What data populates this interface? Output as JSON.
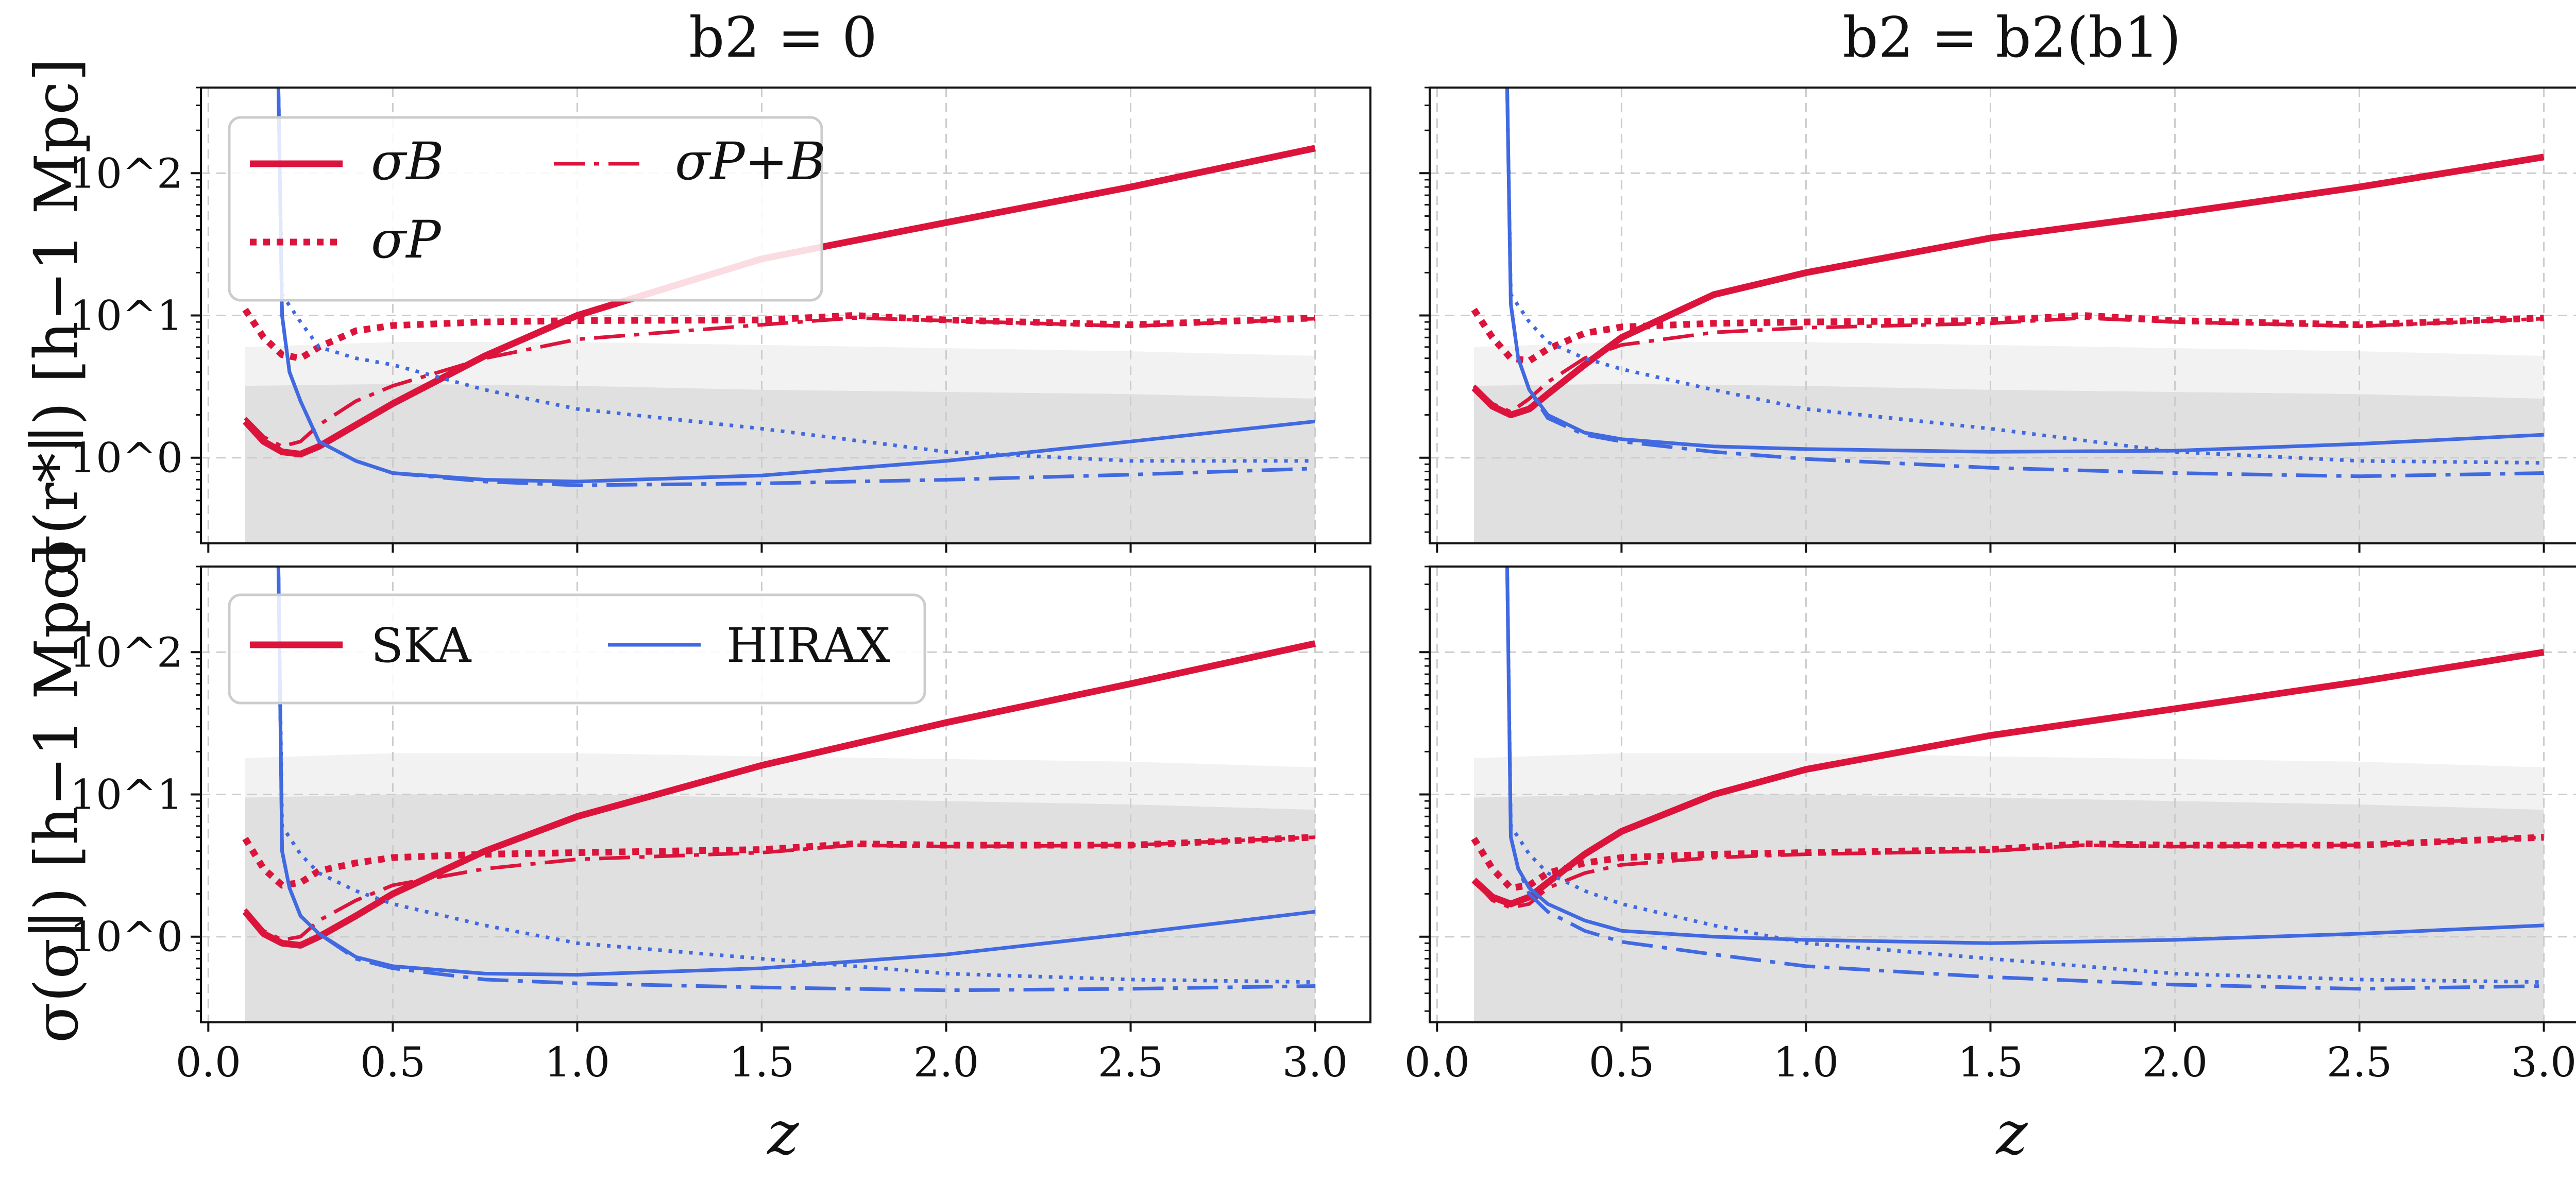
{
  "figure": {
    "column_titles": [
      "b2 = 0",
      "b2 = b2(b1)"
    ],
    "row_ylabels": [
      "σ(r*∥) [h−1 Mpc]",
      "σ(σ∥) [h−1 Mpc]"
    ],
    "xlabel": "z",
    "xticks": [
      "0.0",
      "0.5",
      "1.0",
      "1.5",
      "2.0",
      "2.5",
      "3.0"
    ],
    "yticks": [
      "10^0",
      "10^1",
      "10^2"
    ]
  },
  "legend_top": {
    "items": [
      {
        "label": "σB",
        "style": "solid-thick"
      },
      {
        "label": "σP+B",
        "style": "dashdot"
      },
      {
        "label": "σP",
        "style": "dotted-thick"
      }
    ]
  },
  "legend_bottom": {
    "items": [
      {
        "label": "SKA",
        "color": "#dc143c"
      },
      {
        "label": "HIRAX",
        "color": "#4169e1"
      }
    ]
  },
  "colors": {
    "ska": "#dc143c",
    "hirax": "#4169e1",
    "band_light": "#f2f2f2",
    "band_dark": "#e0e0e0",
    "grid": "#cccccc"
  },
  "chart_data": [
    {
      "type": "line",
      "panel": "top-left",
      "title": "b2 = 0",
      "xlabel": "",
      "ylabel": "σ(r*∥) [h−1 Mpc]",
      "xlim": [
        -0.02,
        3.15
      ],
      "ylim": [
        0.25,
        400
      ],
      "yscale": "log",
      "grid": true,
      "legend": "top-left",
      "bands": {
        "x": [
          0.1,
          3.0
        ],
        "upper_light": [
          6.0,
          6.5,
          6.5,
          6.2,
          5.6,
          5.2
        ],
        "upper_dark": [
          3.2,
          3.3,
          3.2,
          3.0,
          2.8,
          2.6
        ],
        "band_x": [
          0.1,
          0.5,
          1.0,
          1.5,
          2.5,
          3.0
        ]
      },
      "series": [
        {
          "name": "SKA σB",
          "x": [
            0.1,
            0.15,
            0.2,
            0.25,
            0.3,
            0.4,
            0.5,
            0.75,
            1.0,
            1.5,
            2.0,
            2.5,
            3.0
          ],
          "values": [
            1.8,
            1.3,
            1.1,
            1.06,
            1.2,
            1.7,
            2.4,
            5.2,
            10,
            25,
            45,
            80,
            150
          ]
        },
        {
          "name": "SKA σP",
          "x": [
            0.1,
            0.15,
            0.2,
            0.25,
            0.3,
            0.4,
            0.5,
            0.75,
            1.0,
            1.5,
            1.75,
            2.0,
            2.5,
            3.0
          ],
          "values": [
            11,
            7,
            5.3,
            5.0,
            6.0,
            7.8,
            8.5,
            9.0,
            9.2,
            9.3,
            10.0,
            9.3,
            8.6,
            9.6
          ]
        },
        {
          "name": "SKA σP+B",
          "x": [
            0.1,
            0.15,
            0.2,
            0.25,
            0.3,
            0.4,
            0.5,
            0.75,
            1.0,
            1.5,
            1.75,
            2.0,
            2.5,
            3.0
          ],
          "values": [
            1.9,
            1.4,
            1.2,
            1.3,
            1.7,
            2.5,
            3.2,
            5.0,
            6.8,
            8.6,
            9.6,
            9.2,
            8.4,
            9.5
          ]
        },
        {
          "name": "HIRAX σB",
          "x": [
            0.19,
            0.2,
            0.22,
            0.25,
            0.3,
            0.4,
            0.5,
            0.75,
            1.0,
            1.5,
            2.0,
            2.5,
            3.0
          ],
          "values": [
            400,
            10,
            4,
            2.5,
            1.3,
            0.95,
            0.78,
            0.7,
            0.68,
            0.75,
            0.95,
            1.3,
            1.8
          ]
        },
        {
          "name": "HIRAX σP",
          "x": [
            0.19,
            0.2,
            0.25,
            0.3,
            0.4,
            0.5,
            0.75,
            1.0,
            1.5,
            2.0,
            2.5,
            3.0
          ],
          "values": [
            400,
            14,
            9,
            6,
            5,
            4.5,
            3.0,
            2.2,
            1.6,
            1.1,
            0.95,
            0.95
          ]
        },
        {
          "name": "HIRAX σP+B",
          "x": [
            0.19,
            0.2,
            0.22,
            0.25,
            0.3,
            0.4,
            0.5,
            0.75,
            1.0,
            1.5,
            2.0,
            2.5,
            3.0
          ],
          "values": [
            400,
            10,
            4,
            2.5,
            1.3,
            0.95,
            0.78,
            0.68,
            0.64,
            0.66,
            0.7,
            0.76,
            0.84
          ]
        }
      ]
    },
    {
      "type": "line",
      "panel": "top-right",
      "title": "b2 = b2(b1)",
      "xlabel": "",
      "ylabel": "",
      "xlim": [
        -0.02,
        3.15
      ],
      "ylim": [
        0.25,
        400
      ],
      "yscale": "log",
      "grid": true,
      "bands": {
        "x": [
          0.1,
          3.0
        ],
        "upper_light": [
          6.0,
          6.5,
          6.5,
          6.2,
          5.6,
          5.2
        ],
        "upper_dark": [
          3.2,
          3.3,
          3.2,
          3.0,
          2.8,
          2.6
        ],
        "band_x": [
          0.1,
          0.5,
          1.0,
          1.5,
          2.5,
          3.0
        ]
      },
      "series": [
        {
          "name": "SKA σB",
          "x": [
            0.1,
            0.15,
            0.2,
            0.25,
            0.3,
            0.4,
            0.5,
            0.75,
            1.0,
            1.5,
            2.0,
            2.5,
            3.0
          ],
          "values": [
            3.1,
            2.3,
            2.0,
            2.2,
            2.8,
            4.5,
            7.0,
            14,
            20,
            35,
            52,
            80,
            130
          ]
        },
        {
          "name": "SKA σP",
          "x": [
            0.1,
            0.15,
            0.2,
            0.25,
            0.3,
            0.4,
            0.5,
            0.75,
            1.0,
            1.5,
            1.75,
            2.0,
            2.5,
            3.0
          ],
          "values": [
            11,
            7,
            5.0,
            4.8,
            5.8,
            7.5,
            8.3,
            8.8,
            9.0,
            9.2,
            10.0,
            9.2,
            8.6,
            9.6
          ]
        },
        {
          "name": "SKA σP+B",
          "x": [
            0.1,
            0.15,
            0.2,
            0.25,
            0.3,
            0.4,
            0.5,
            0.75,
            1.0,
            1.5,
            1.75,
            2.0,
            2.5,
            3.0
          ],
          "values": [
            3.2,
            2.4,
            2.1,
            2.6,
            3.4,
            5.0,
            6.2,
            7.6,
            8.2,
            8.8,
            9.6,
            9.0,
            8.4,
            9.5
          ]
        },
        {
          "name": "HIRAX σB",
          "x": [
            0.19,
            0.2,
            0.22,
            0.25,
            0.3,
            0.4,
            0.5,
            0.75,
            1.0,
            1.5,
            2.0,
            2.5,
            3.0
          ],
          "values": [
            400,
            12,
            5,
            3,
            2.0,
            1.5,
            1.35,
            1.2,
            1.15,
            1.1,
            1.12,
            1.25,
            1.45
          ]
        },
        {
          "name": "HIRAX σP",
          "x": [
            0.19,
            0.2,
            0.25,
            0.3,
            0.4,
            0.5,
            0.75,
            1.0,
            1.5,
            2.0,
            2.5,
            3.0
          ],
          "values": [
            400,
            14,
            9,
            6.5,
            5,
            4.2,
            3.0,
            2.2,
            1.6,
            1.1,
            0.95,
            0.92
          ]
        },
        {
          "name": "HIRAX σP+B",
          "x": [
            0.19,
            0.2,
            0.22,
            0.25,
            0.3,
            0.4,
            0.5,
            0.75,
            1.0,
            1.5,
            2.0,
            2.5,
            3.0
          ],
          "values": [
            400,
            12,
            5,
            3,
            1.9,
            1.45,
            1.3,
            1.1,
            0.98,
            0.85,
            0.78,
            0.74,
            0.78
          ]
        }
      ]
    },
    {
      "type": "line",
      "panel": "bottom-left",
      "title": "",
      "xlabel": "z",
      "ylabel": "σ(σ∥) [h−1 Mpc]",
      "xlim": [
        -0.02,
        3.15
      ],
      "ylim": [
        0.25,
        400
      ],
      "yscale": "log",
      "grid": true,
      "legend": "top-left",
      "bands": {
        "x": [
          0.1,
          3.0
        ],
        "upper_light": [
          18,
          19.5,
          19.5,
          18.5,
          17,
          15.5
        ],
        "upper_dark": [
          9.5,
          10,
          10,
          9.5,
          8.5,
          7.8
        ],
        "band_x": [
          0.1,
          0.5,
          1.0,
          1.5,
          2.5,
          3.0
        ]
      },
      "series": [
        {
          "name": "SKA σB",
          "x": [
            0.1,
            0.15,
            0.2,
            0.25,
            0.3,
            0.4,
            0.5,
            0.75,
            1.0,
            1.5,
            2.0,
            2.5,
            3.0
          ],
          "values": [
            1.5,
            1.05,
            0.9,
            0.87,
            1.0,
            1.4,
            2.0,
            4.0,
            7.0,
            16,
            32,
            60,
            115
          ]
        },
        {
          "name": "SKA σP",
          "x": [
            0.1,
            0.15,
            0.2,
            0.25,
            0.3,
            0.4,
            0.5,
            0.75,
            1.0,
            1.5,
            1.75,
            2.0,
            2.5,
            3.0
          ],
          "values": [
            4.9,
            3.0,
            2.3,
            2.4,
            2.9,
            3.3,
            3.6,
            3.8,
            3.9,
            4.1,
            4.5,
            4.4,
            4.4,
            5.0
          ]
        },
        {
          "name": "SKA σP+B",
          "x": [
            0.1,
            0.15,
            0.2,
            0.25,
            0.3,
            0.4,
            0.5,
            0.75,
            1.0,
            1.5,
            1.75,
            2.0,
            2.5,
            3.0
          ],
          "values": [
            1.55,
            1.1,
            0.95,
            1.0,
            1.3,
            1.8,
            2.3,
            3.0,
            3.5,
            3.9,
            4.4,
            4.3,
            4.4,
            5.0
          ]
        },
        {
          "name": "HIRAX σB",
          "x": [
            0.19,
            0.2,
            0.22,
            0.25,
            0.3,
            0.4,
            0.5,
            0.75,
            1.0,
            1.5,
            2.0,
            2.5,
            3.0
          ],
          "values": [
            400,
            4,
            2.2,
            1.4,
            1.05,
            0.72,
            0.62,
            0.55,
            0.54,
            0.6,
            0.75,
            1.05,
            1.5
          ]
        },
        {
          "name": "HIRAX σP",
          "x": [
            0.19,
            0.2,
            0.25,
            0.3,
            0.4,
            0.5,
            0.75,
            1.0,
            1.5,
            2.0,
            2.5,
            3.0
          ],
          "values": [
            400,
            6,
            3.8,
            2.8,
            2.1,
            1.7,
            1.2,
            0.9,
            0.7,
            0.55,
            0.5,
            0.48
          ]
        },
        {
          "name": "HIRAX σP+B",
          "x": [
            0.19,
            0.2,
            0.22,
            0.25,
            0.3,
            0.4,
            0.5,
            0.75,
            1.0,
            1.5,
            2.0,
            2.5,
            3.0
          ],
          "values": [
            400,
            4,
            2.2,
            1.4,
            1.05,
            0.7,
            0.6,
            0.5,
            0.47,
            0.44,
            0.42,
            0.43,
            0.45
          ]
        }
      ]
    },
    {
      "type": "line",
      "panel": "bottom-right",
      "title": "",
      "xlabel": "z",
      "ylabel": "",
      "xlim": [
        -0.02,
        3.15
      ],
      "ylim": [
        0.25,
        400
      ],
      "yscale": "log",
      "grid": true,
      "bands": {
        "x": [
          0.1,
          3.0
        ],
        "upper_light": [
          18,
          19.5,
          19.5,
          18.5,
          17,
          15.5
        ],
        "upper_dark": [
          9.5,
          10,
          10,
          9.5,
          8.5,
          7.8
        ],
        "band_x": [
          0.1,
          0.5,
          1.0,
          1.5,
          2.5,
          3.0
        ]
      },
      "series": [
        {
          "name": "SKA σB",
          "x": [
            0.1,
            0.15,
            0.2,
            0.25,
            0.3,
            0.4,
            0.5,
            0.75,
            1.0,
            1.5,
            2.0,
            2.5,
            3.0
          ],
          "values": [
            2.5,
            1.9,
            1.7,
            1.9,
            2.4,
            3.8,
            5.5,
            10,
            15,
            26,
            40,
            62,
            100
          ]
        },
        {
          "name": "SKA σP",
          "x": [
            0.1,
            0.15,
            0.2,
            0.25,
            0.3,
            0.4,
            0.5,
            0.75,
            1.0,
            1.5,
            1.75,
            2.0,
            2.5,
            3.0
          ],
          "values": [
            4.9,
            3.0,
            2.2,
            2.3,
            2.8,
            3.3,
            3.6,
            3.8,
            3.9,
            4.1,
            4.5,
            4.4,
            4.4,
            5.0
          ]
        },
        {
          "name": "SKA σP+B",
          "x": [
            0.1,
            0.15,
            0.2,
            0.25,
            0.3,
            0.4,
            0.5,
            0.75,
            1.0,
            1.5,
            1.75,
            2.0,
            2.5,
            3.0
          ],
          "values": [
            2.5,
            1.8,
            1.6,
            1.7,
            2.2,
            2.8,
            3.2,
            3.6,
            3.8,
            4.0,
            4.4,
            4.3,
            4.4,
            5.0
          ]
        },
        {
          "name": "HIRAX σB",
          "x": [
            0.19,
            0.2,
            0.22,
            0.25,
            0.3,
            0.4,
            0.5,
            0.75,
            1.0,
            1.5,
            2.0,
            2.5,
            3.0
          ],
          "values": [
            400,
            5,
            3,
            2.2,
            1.7,
            1.3,
            1.1,
            1.0,
            0.95,
            0.9,
            0.95,
            1.05,
            1.2
          ]
        },
        {
          "name": "HIRAX σP",
          "x": [
            0.19,
            0.2,
            0.25,
            0.3,
            0.4,
            0.5,
            0.75,
            1.0,
            1.5,
            2.0,
            2.5,
            3.0
          ],
          "values": [
            400,
            6,
            3.8,
            2.8,
            2.1,
            1.7,
            1.2,
            0.9,
            0.7,
            0.55,
            0.5,
            0.48
          ]
        },
        {
          "name": "HIRAX σP+B",
          "x": [
            0.19,
            0.2,
            0.22,
            0.25,
            0.3,
            0.4,
            0.5,
            0.75,
            1.0,
            1.5,
            2.0,
            2.5,
            3.0
          ],
          "values": [
            400,
            5,
            3,
            2.0,
            1.5,
            1.1,
            0.92,
            0.75,
            0.62,
            0.52,
            0.46,
            0.43,
            0.45
          ]
        }
      ]
    }
  ]
}
